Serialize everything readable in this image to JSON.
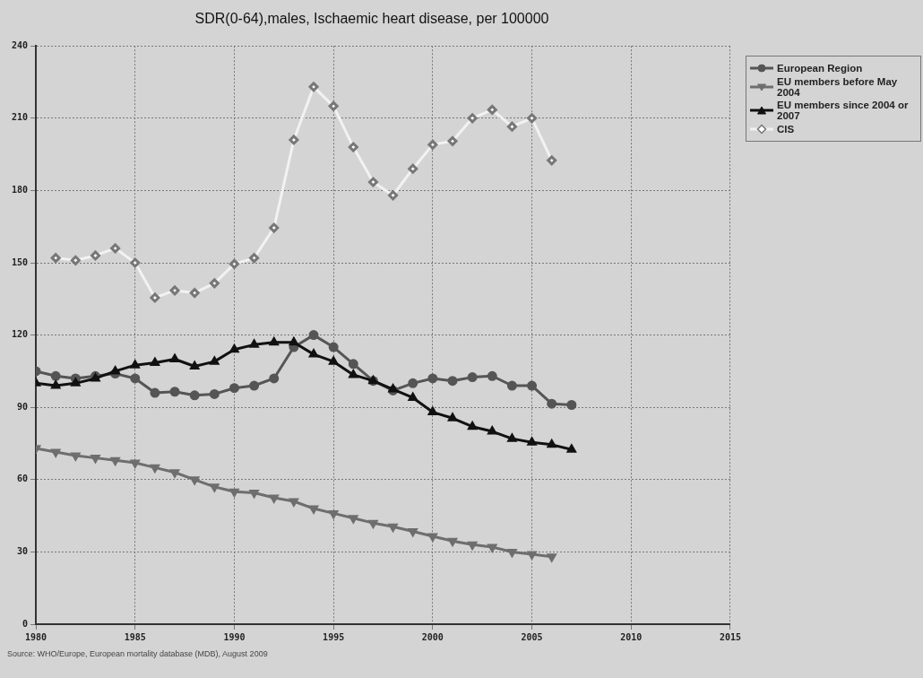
{
  "chart_data": {
    "type": "line",
    "title": "SDR(0-64),males, Ischaemic heart disease, per 100000",
    "x": [
      1980,
      1981,
      1982,
      1983,
      1984,
      1985,
      1986,
      1987,
      1988,
      1989,
      1990,
      1991,
      1992,
      1993,
      1994,
      1995,
      1996,
      1997,
      1998,
      1999,
      2000,
      2001,
      2002,
      2003,
      2004,
      2005,
      2006,
      2007
    ],
    "series": [
      {
        "name": "European Region",
        "color": "#555555",
        "marker": "circle",
        "values": [
          105,
          103,
          102,
          103,
          104,
          102,
          96,
          96.5,
          95,
          95.5,
          98,
          99,
          102,
          115,
          120,
          115,
          108,
          101,
          97,
          100,
          102,
          101,
          102.5,
          103,
          99,
          99,
          91.5,
          91
        ]
      },
      {
        "name": "EU members before May 2004",
        "color": "#6e6e6e",
        "marker": "triangle",
        "values": [
          73,
          71.5,
          70,
          69,
          68,
          67,
          65,
          63,
          60,
          57,
          55,
          54.5,
          52.5,
          51,
          48,
          46,
          44,
          42,
          40.5,
          38.5,
          36.5,
          34.5,
          33,
          32,
          30,
          29,
          28,
          null
        ]
      },
      {
        "name": "EU members since 2004 or 2007",
        "color": "#111111",
        "marker": "triangle",
        "values": [
          100,
          99,
          100,
          102,
          105,
          107.5,
          108.5,
          110,
          107,
          109,
          114,
          116,
          117,
          117,
          112,
          109,
          103.5,
          101,
          97.5,
          94,
          88,
          85.5,
          82,
          80,
          77,
          75.5,
          74.5,
          72.5
        ]
      },
      {
        "name": "CIS",
        "color": "#f2f2f2",
        "marker": "diamond",
        "x": [
          1981,
          1982,
          1983,
          1984,
          1985,
          1986,
          1987,
          1988,
          1989,
          1990,
          1991,
          1992,
          1993,
          1994,
          1995,
          1996,
          1997,
          1998,
          1999,
          2000,
          2001,
          2002,
          2003,
          2004,
          2005,
          2006
        ],
        "values": [
          152,
          151,
          153,
          156,
          150,
          135.5,
          138.5,
          137.5,
          141.5,
          149.5,
          152,
          164.5,
          201,
          223,
          215,
          198,
          183.5,
          178,
          189,
          199,
          200.5,
          210,
          213.5,
          206.5,
          210,
          192.5
        ]
      }
    ],
    "xlim": [
      1980,
      2015
    ],
    "xticks": [
      1980,
      1985,
      1990,
      1995,
      2000,
      2005,
      2010,
      2015
    ],
    "ylim": [
      0,
      240
    ],
    "yticks": [
      0,
      30,
      60,
      90,
      120,
      150,
      180,
      210,
      240
    ],
    "grid": true,
    "legend": "top right",
    "line_style": "solid",
    "annotations": [
      "Source: WHO/Europe, European mortality database (MDB), August 2009"
    ]
  }
}
